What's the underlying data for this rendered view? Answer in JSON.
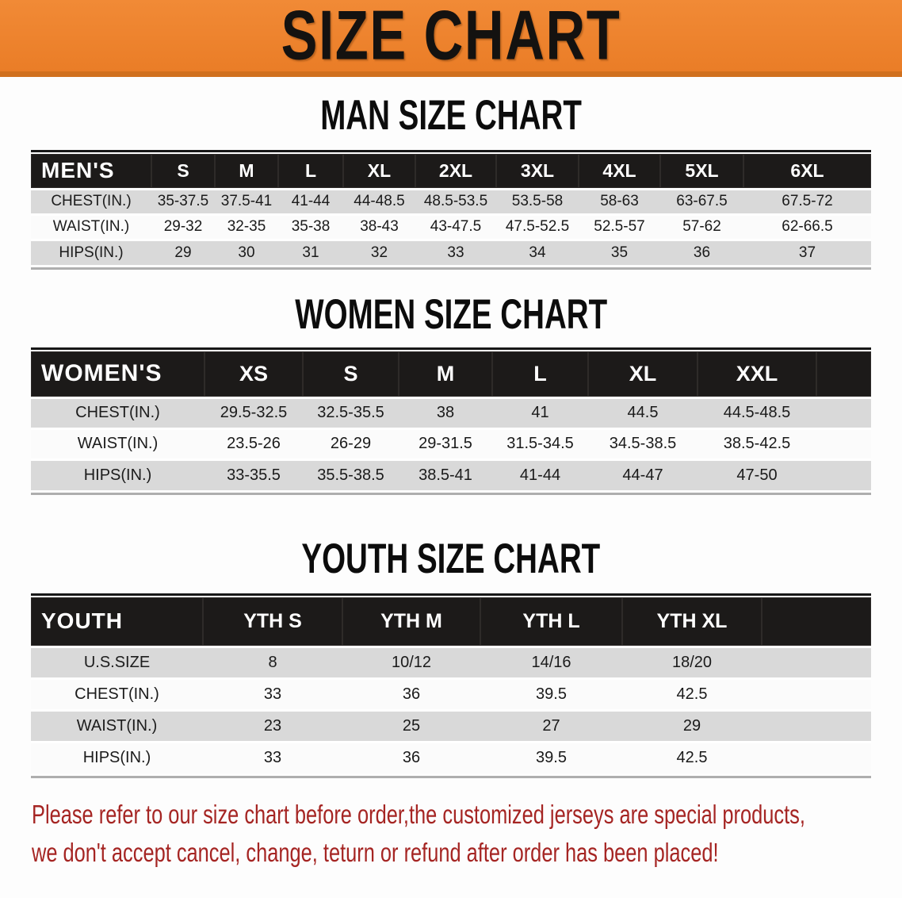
{
  "banner": {
    "title": "SIZE CHART"
  },
  "colors": {
    "banner_orange": "#ee8130",
    "banner_edge": "#d0701e",
    "header_black": "#1c1a19",
    "row_gray": "#d9d9d9",
    "row_white": "#fbfbfb",
    "note_red": "#a52523"
  },
  "chart_data": [
    {
      "type": "table",
      "title": "MAN SIZE CHART",
      "header": [
        "MEN'S",
        "S",
        "M",
        "L",
        "XL",
        "2XL",
        "3XL",
        "4XL",
        "5XL",
        "6XL"
      ],
      "rows": [
        {
          "label": "CHEST(IN.)",
          "values": [
            "35-37.5",
            "37.5-41",
            "41-44",
            "44-48.5",
            "48.5-53.5",
            "53.5-58",
            "58-63",
            "63-67.5",
            "67.5-72"
          ]
        },
        {
          "label": "WAIST(IN.)",
          "values": [
            "29-32",
            "32-35",
            "35-38",
            "38-43",
            "43-47.5",
            "47.5-52.5",
            "52.5-57",
            "57-62",
            "62-66.5"
          ]
        },
        {
          "label": "HIPS(IN.)",
          "values": [
            "29",
            "30",
            "31",
            "32",
            "33",
            "34",
            "35",
            "36",
            "37"
          ]
        }
      ]
    },
    {
      "type": "table",
      "title": "WOMEN SIZE CHART",
      "header": [
        "WOMEN'S",
        "XS",
        "S",
        "M",
        "L",
        "XL",
        "XXL"
      ],
      "rows": [
        {
          "label": "CHEST(IN.)",
          "values": [
            "29.5-32.5",
            "32.5-35.5",
            "38",
            "41",
            "44.5",
            "44.5-48.5"
          ]
        },
        {
          "label": "WAIST(IN.)",
          "values": [
            "23.5-26",
            "26-29",
            "29-31.5",
            "31.5-34.5",
            "34.5-38.5",
            "38.5-42.5"
          ]
        },
        {
          "label": "HIPS(IN.)",
          "values": [
            "33-35.5",
            "35.5-38.5",
            "38.5-41",
            "41-44",
            "44-47",
            "47-50"
          ]
        }
      ]
    },
    {
      "type": "table",
      "title": "YOUTH SIZE CHART",
      "header": [
        "YOUTH",
        "YTH S",
        "YTH M",
        "YTH L",
        "YTH XL"
      ],
      "rows": [
        {
          "label": "U.S.SIZE",
          "values": [
            "8",
            "10/12",
            "14/16",
            "18/20"
          ]
        },
        {
          "label": "CHEST(IN.)",
          "values": [
            "33",
            "36",
            "39.5",
            "42.5"
          ]
        },
        {
          "label": "WAIST(IN.)",
          "values": [
            "23",
            "25",
            "27",
            "29"
          ]
        },
        {
          "label": "HIPS(IN.)",
          "values": [
            "33",
            "36",
            "39.5",
            "42.5"
          ]
        }
      ]
    }
  ],
  "footer": {
    "line1": "Please refer to our size chart before order,the customized jerseys are special products,",
    "line2": "we don't accept cancel, change, teturn or refund after order has been placed!"
  }
}
